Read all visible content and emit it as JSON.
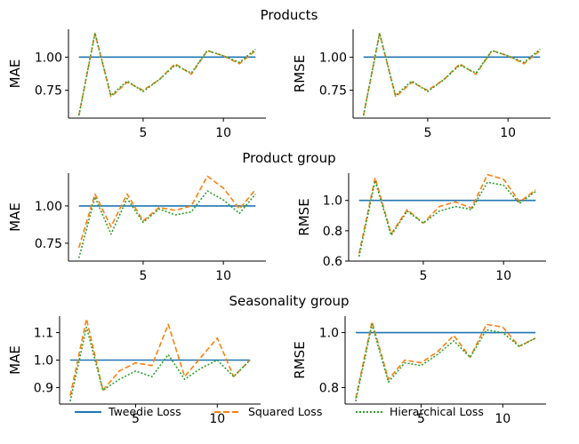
{
  "legend": {
    "placement": "bottom-center",
    "items": [
      {
        "label": "Tweedie Loss",
        "color": "#1f77b4",
        "style": "solid"
      },
      {
        "label": "Squared Loss",
        "color": "#ff7f0e",
        "style": "dashed"
      },
      {
        "label": "Hierarchical Loss",
        "color": "#2ca02c",
        "style": "dotted"
      }
    ]
  },
  "chart_data": [
    {
      "type": "line",
      "section_title": "Products",
      "ylabel": "MAE",
      "x": [
        1,
        2,
        3,
        4,
        5,
        6,
        7,
        8,
        9,
        10,
        11,
        12
      ],
      "xticks": [
        5,
        10
      ],
      "yticks": [
        "0.75",
        "1.00"
      ],
      "ylim": [
        0.54,
        1.21
      ],
      "grid": false,
      "series": [
        {
          "name": "Tweedie Loss",
          "values": [
            1.0,
            1.0,
            1.0,
            1.0,
            1.0,
            1.0,
            1.0,
            1.0,
            1.0,
            1.0,
            1.0,
            1.0
          ]
        },
        {
          "name": "Squared Loss",
          "values": [
            0.56,
            1.18,
            0.7,
            0.81,
            0.75,
            0.83,
            0.95,
            0.87,
            1.05,
            1.01,
            0.95,
            1.05
          ]
        },
        {
          "name": "Hierarchical Loss",
          "values": [
            0.56,
            1.18,
            0.71,
            0.82,
            0.74,
            0.83,
            0.94,
            0.88,
            1.05,
            1.01,
            0.96,
            1.06
          ]
        }
      ]
    },
    {
      "type": "line",
      "section_title": "",
      "ylabel": "RMSE",
      "x": [
        1,
        2,
        3,
        4,
        5,
        6,
        7,
        8,
        9,
        10,
        11,
        12
      ],
      "xticks": [
        5,
        10
      ],
      "yticks": [
        "0.75",
        "1.00"
      ],
      "ylim": [
        0.54,
        1.21
      ],
      "grid": false,
      "series": [
        {
          "name": "Tweedie Loss",
          "values": [
            1.0,
            1.0,
            1.0,
            1.0,
            1.0,
            1.0,
            1.0,
            1.0,
            1.0,
            1.0,
            1.0,
            1.0
          ]
        },
        {
          "name": "Squared Loss",
          "values": [
            0.56,
            1.18,
            0.7,
            0.81,
            0.75,
            0.83,
            0.95,
            0.87,
            1.05,
            1.01,
            0.95,
            1.05
          ]
        },
        {
          "name": "Hierarchical Loss",
          "values": [
            0.56,
            1.18,
            0.71,
            0.82,
            0.74,
            0.83,
            0.94,
            0.88,
            1.05,
            1.01,
            0.96,
            1.06
          ]
        }
      ]
    },
    {
      "type": "line",
      "section_title": "Product group",
      "ylabel": "MAE",
      "x": [
        1,
        2,
        3,
        4,
        5,
        6,
        7,
        8,
        9,
        10,
        11,
        12
      ],
      "xticks": [
        5,
        10
      ],
      "yticks": [
        "0.75",
        "1.00"
      ],
      "ylim": [
        0.63,
        1.22
      ],
      "grid": false,
      "series": [
        {
          "name": "Tweedie Loss",
          "values": [
            1.0,
            1.0,
            1.0,
            1.0,
            1.0,
            1.0,
            1.0,
            1.0,
            1.0,
            1.0,
            1.0,
            1.0
          ]
        },
        {
          "name": "Squared Loss",
          "values": [
            0.72,
            1.08,
            0.86,
            1.08,
            0.9,
            0.99,
            0.97,
            1.0,
            1.2,
            1.12,
            0.98,
            1.11
          ]
        },
        {
          "name": "Hierarchical Loss",
          "values": [
            0.65,
            1.06,
            0.81,
            1.05,
            0.89,
            0.98,
            0.94,
            0.96,
            1.1,
            1.04,
            0.95,
            1.08
          ]
        }
      ]
    },
    {
      "type": "line",
      "section_title": "",
      "ylabel": "RMSE",
      "x": [
        1,
        2,
        3,
        4,
        5,
        6,
        7,
        8,
        9,
        10,
        11,
        12
      ],
      "xticks": [
        5,
        10
      ],
      "yticks": [
        "0.6",
        "0.8",
        "1.0"
      ],
      "ylim": [
        0.6,
        1.18
      ],
      "grid": false,
      "series": [
        {
          "name": "Tweedie Loss",
          "values": [
            1.0,
            1.0,
            1.0,
            1.0,
            1.0,
            1.0,
            1.0,
            1.0,
            1.0,
            1.0,
            1.0,
            1.0
          ]
        },
        {
          "name": "Squared Loss",
          "values": [
            0.65,
            1.15,
            0.78,
            0.94,
            0.85,
            0.96,
            0.99,
            0.95,
            1.17,
            1.14,
            0.99,
            1.07
          ]
        },
        {
          "name": "Hierarchical Loss",
          "values": [
            0.63,
            1.13,
            0.77,
            0.93,
            0.85,
            0.93,
            0.96,
            0.94,
            1.12,
            1.1,
            0.98,
            1.06
          ]
        }
      ]
    },
    {
      "type": "line",
      "section_title": "Seasonality group",
      "ylabel": "MAE",
      "x": [
        1,
        2,
        3,
        4,
        5,
        6,
        7,
        8,
        9,
        10,
        11,
        12
      ],
      "xticks": [
        5,
        10
      ],
      "yticks": [
        "0.9",
        "1.0",
        "1.1"
      ],
      "ylim": [
        0.84,
        1.16
      ],
      "grid": false,
      "series": [
        {
          "name": "Tweedie Loss",
          "values": [
            1.0,
            1.0,
            1.0,
            1.0,
            1.0,
            1.0,
            1.0,
            1.0,
            1.0,
            1.0,
            1.0,
            1.0
          ]
        },
        {
          "name": "Squared Loss",
          "values": [
            0.87,
            1.15,
            0.89,
            0.96,
            0.99,
            0.98,
            1.13,
            0.94,
            1.01,
            1.08,
            0.94,
            1.0
          ]
        },
        {
          "name": "Hierarchical Loss",
          "values": [
            0.85,
            1.12,
            0.89,
            0.93,
            0.96,
            0.94,
            1.02,
            0.93,
            0.97,
            1.0,
            0.94,
            1.0
          ]
        }
      ]
    },
    {
      "type": "line",
      "section_title": "",
      "ylabel": "RMSE",
      "x": [
        1,
        2,
        3,
        4,
        5,
        6,
        7,
        8,
        9,
        10,
        11,
        12
      ],
      "xticks": [
        5,
        10
      ],
      "yticks": [
        "0.8",
        "1.0"
      ],
      "ylim": [
        0.74,
        1.06
      ],
      "grid": false,
      "series": [
        {
          "name": "Tweedie Loss",
          "values": [
            1.0,
            1.0,
            1.0,
            1.0,
            1.0,
            1.0,
            1.0,
            1.0,
            1.0,
            1.0,
            1.0,
            1.0
          ]
        },
        {
          "name": "Squared Loss",
          "values": [
            0.76,
            1.04,
            0.83,
            0.9,
            0.89,
            0.93,
            0.99,
            0.91,
            1.03,
            1.02,
            0.95,
            0.98
          ]
        },
        {
          "name": "Hierarchical Loss",
          "values": [
            0.75,
            1.03,
            0.82,
            0.89,
            0.88,
            0.92,
            0.97,
            0.91,
            1.01,
            1.0,
            0.95,
            0.98
          ]
        }
      ]
    }
  ]
}
